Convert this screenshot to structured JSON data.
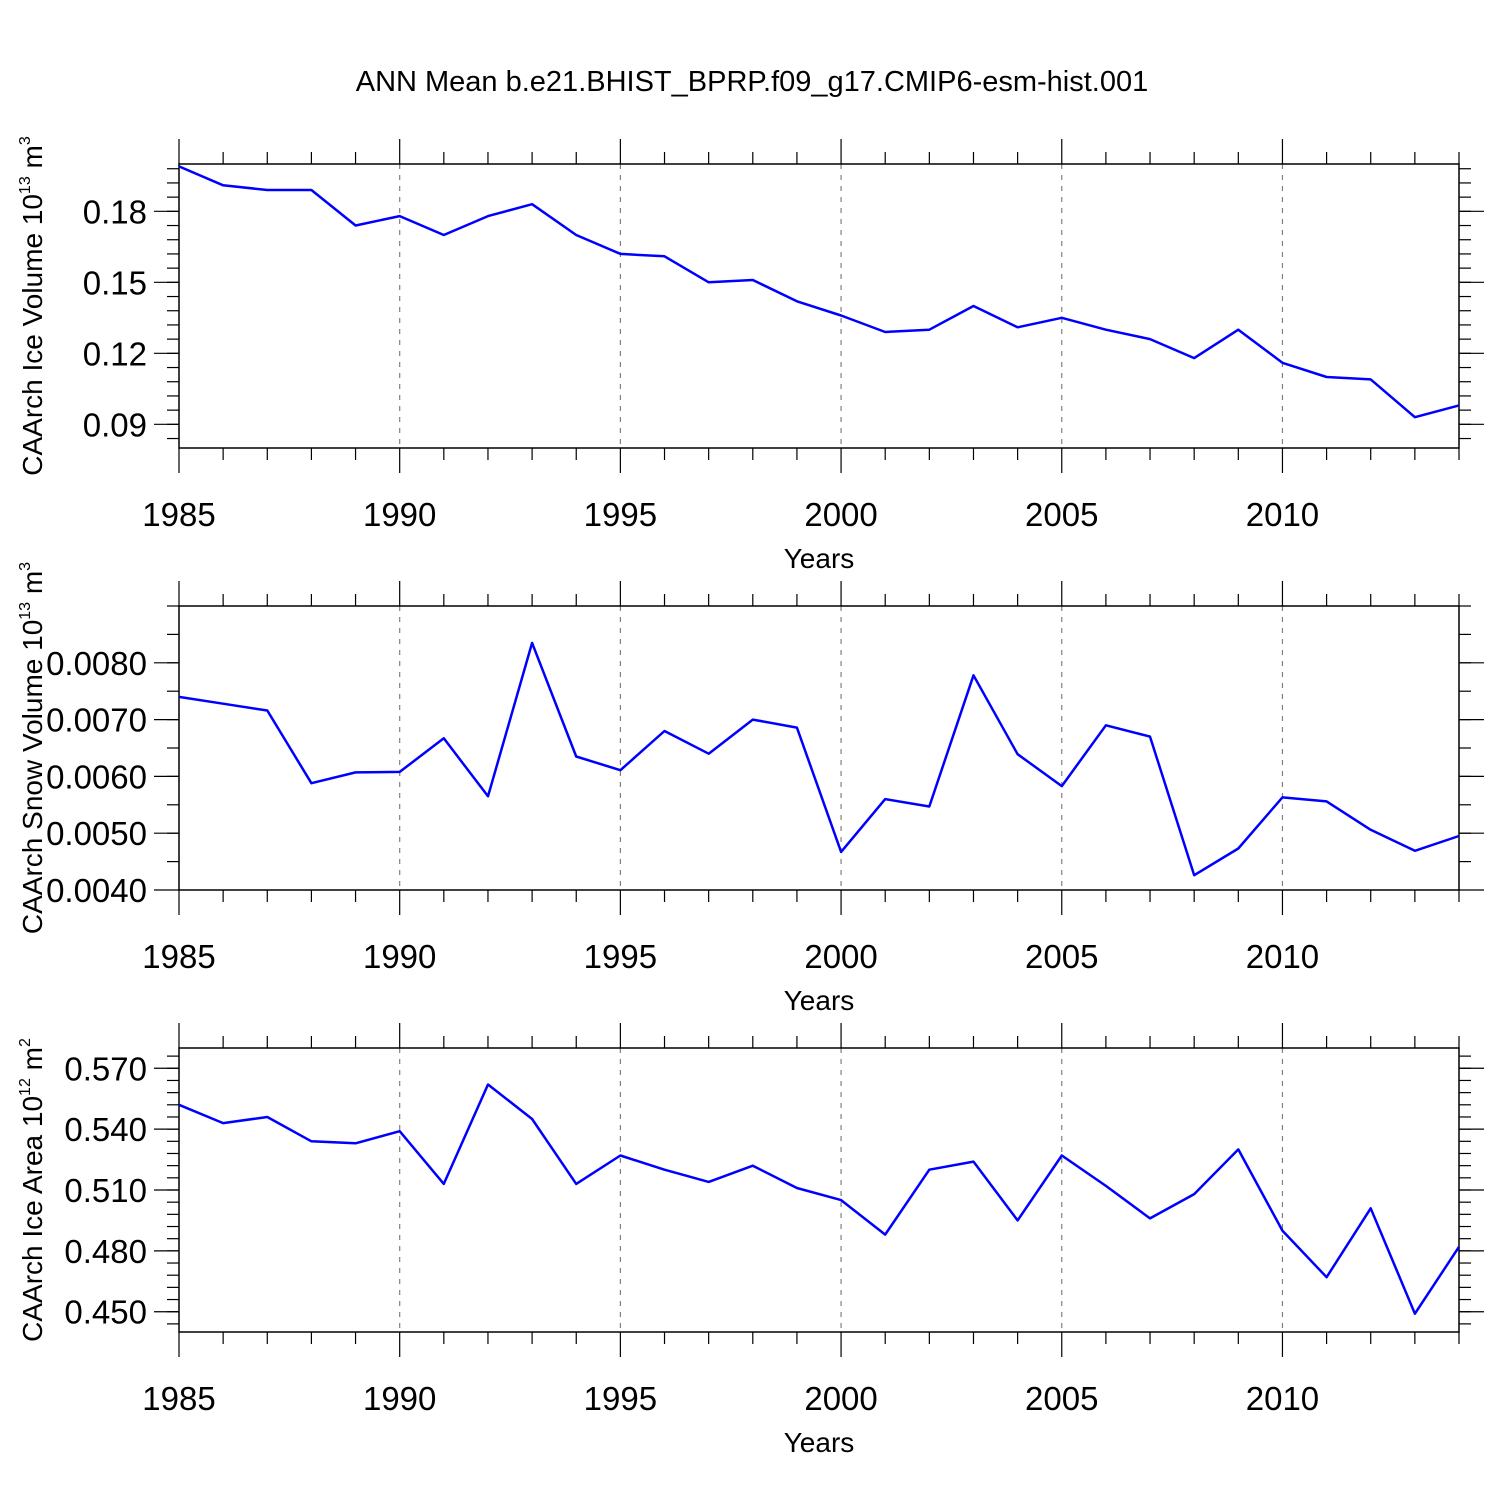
{
  "title": "ANN Mean b.e21.BHIST_BPRP.f09_g17.CMIP6-esm-hist.001",
  "colors": {
    "line": "#0000ff",
    "grid": "#808080",
    "axis": "#000000"
  },
  "chart_data": [
    {
      "type": "line",
      "ylabel": {
        "base": "CAArch Ice Volume 10",
        "exp": "13",
        "unit": " m",
        "unit_exp": "3"
      },
      "xlabel": "Years",
      "xlim": [
        1985,
        2014
      ],
      "ylim": [
        0.08,
        0.2
      ]
    },
    {
      "type": "line",
      "ylabel": {
        "base": "CAArch Snow Volume 10",
        "exp": "13",
        "unit": " m",
        "unit_exp": "3"
      },
      "xlabel": "Years",
      "xlim": [
        1985,
        2014
      ],
      "ylim": [
        0.004,
        0.009
      ]
    },
    {
      "type": "line",
      "ylabel": {
        "base": "CAArch Ice Area 10",
        "exp": "12",
        "unit": " m",
        "unit_exp": "2"
      },
      "xlabel": "Years",
      "xlim": [
        1985,
        2014
      ],
      "ylim": [
        0.44,
        0.58
      ]
    }
  ]
}
